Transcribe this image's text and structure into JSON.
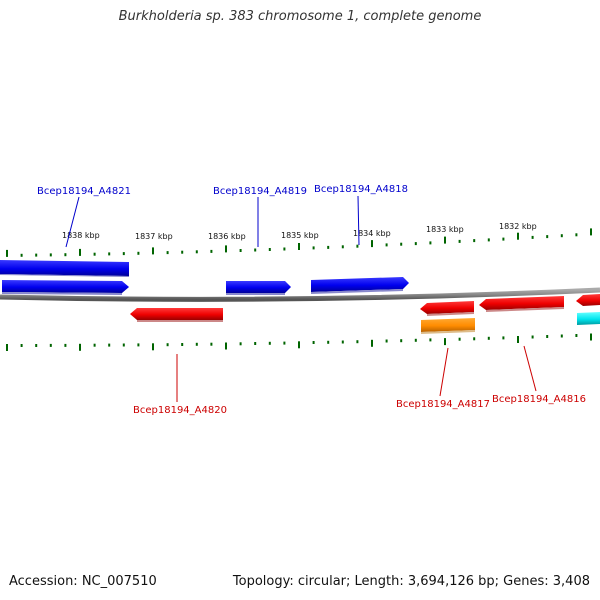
{
  "title": "Burkholderia sp. 383 chromosome 1, complete genome",
  "footer": {
    "accession": "Accession: NC_007510",
    "topology": "Topology: circular; Length: 3,694,126 bp; Genes: 3,408"
  },
  "colors": {
    "plus_strand": "#0000ee",
    "minus_strand": "#ee0000",
    "orange_feature": "#ff8c00",
    "cyan_feature": "#00e5ee",
    "backbone": "#888888",
    "tick": "#006400",
    "plus_label": "#0000cc",
    "minus_label": "#cc0000"
  },
  "scale_labels": [
    "1838 kbp",
    "1837 kbp",
    "1836 kbp",
    "1835 kbp",
    "1834 kbp",
    "1833 kbp",
    "1832 kbp"
  ],
  "gene_labels": {
    "plus": [
      "Bcep18194_A4821",
      "Bcep18194_A4819",
      "Bcep18194_A4818"
    ],
    "minus": [
      "Bcep18194_A4820",
      "Bcep18194_A4817",
      "Bcep18194_A4816"
    ]
  }
}
